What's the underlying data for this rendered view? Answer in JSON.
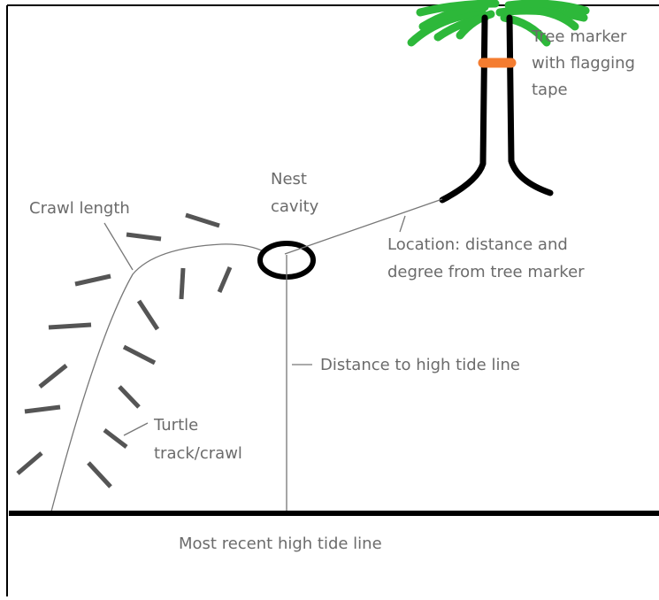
{
  "labels": {
    "tree_marker": [
      "Tree marker",
      "with flagging",
      "tape"
    ],
    "nest_cavity": [
      "Nest",
      "cavity"
    ],
    "crawl_length": "Crawl length",
    "location": [
      "Location: distance and",
      "degree from tree marker"
    ],
    "distance_high_tide": "Distance to high tide line",
    "turtle_track": [
      "Turtle",
      "track/crawl"
    ],
    "high_tide_line": "Most recent high tide line"
  }
}
